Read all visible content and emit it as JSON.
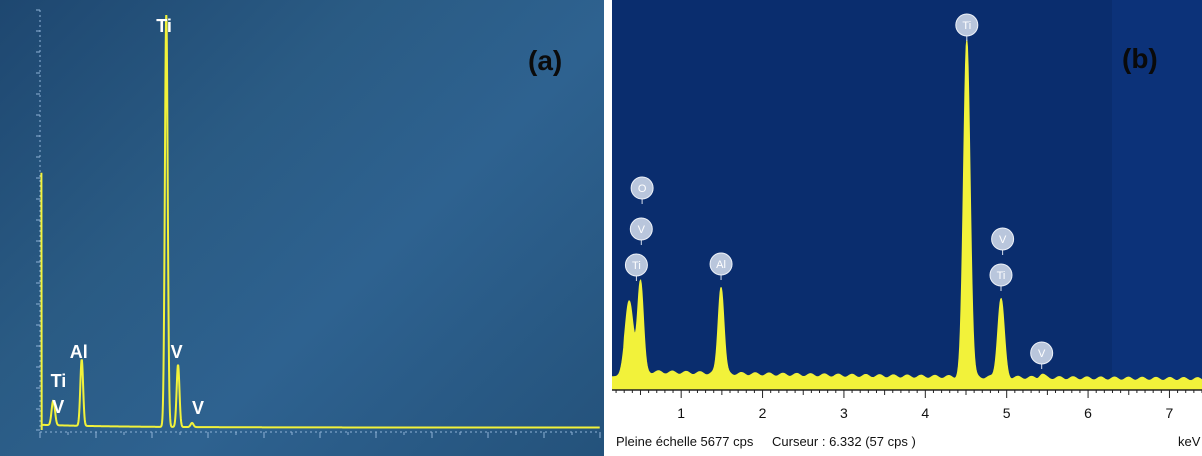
{
  "panel_a": {
    "label": "(a)",
    "peak_labels": [
      {
        "text": "Ti",
        "kev": 4.51
      },
      {
        "text": "Al",
        "kev": 1.49
      },
      {
        "text": "Ti",
        "kev": 0.45
      },
      {
        "text": "V",
        "kev": 0.51
      },
      {
        "text": "V",
        "kev": 4.95
      },
      {
        "text": "V",
        "kev": 5.43
      }
    ]
  },
  "panel_b": {
    "label": "(b)",
    "x_ticks": [
      "1",
      "2",
      "3",
      "4",
      "5",
      "6",
      "7"
    ],
    "unit_label": "keV",
    "status_full_scale": "Pleine échelle 5677 cps",
    "status_cursor": "Curseur : 6.332  (57 cps )",
    "markers": [
      {
        "text": "O",
        "kev": 0.52
      },
      {
        "text": "V",
        "kev": 0.51
      },
      {
        "text": "Ti",
        "kev": 0.45
      },
      {
        "text": "Al",
        "kev": 1.49
      },
      {
        "text": "Ti",
        "kev": 4.51
      },
      {
        "text": "V",
        "kev": 4.95
      },
      {
        "text": "Ti",
        "kev": 4.93
      },
      {
        "text": "V",
        "kev": 5.43
      }
    ]
  },
  "colors": {
    "spectrum": "#f2f23a",
    "panel_a_bg": "#2a5b84",
    "panel_b_bg": "#0a2d6e",
    "marker": "#b9c6dc"
  },
  "chart_data": [
    {
      "type": "line",
      "title": "(a)",
      "xlabel": "",
      "ylabel": "",
      "x_unit": "keV",
      "xlim": [
        0,
        20
      ],
      "series": [
        {
          "values": [
            {
              "x": 0.45,
              "y": 0.04
            },
            {
              "x": 0.51,
              "y": 0.03
            },
            {
              "x": 1.49,
              "y": 0.16
            },
            {
              "x": 4.51,
              "y": 1.0
            },
            {
              "x": 4.93,
              "y": 0.15
            },
            {
              "x": 5.43,
              "y": 0.01
            }
          ]
        }
      ]
    },
    {
      "type": "area",
      "title": "(b)",
      "xlabel": "keV",
      "ylabel": "",
      "xlim": [
        0.15,
        7.4
      ],
      "ylim": [
        0,
        5677
      ],
      "x_ticks": [
        1,
        2,
        3,
        4,
        5,
        6,
        7
      ],
      "full_scale_cps": 5677,
      "cursor": {
        "kev": 6.332,
        "cps": 57
      },
      "series": [
        {
          "values": [
            {
              "x": 0.35,
              "y": 1300
            },
            {
              "x": 0.52,
              "y": 1550
            },
            {
              "x": 1.49,
              "y": 1480
            },
            {
              "x": 4.51,
              "y": 5650
            },
            {
              "x": 4.93,
              "y": 1350
            },
            {
              "x": 5.43,
              "y": 60
            }
          ]
        }
      ]
    }
  ]
}
